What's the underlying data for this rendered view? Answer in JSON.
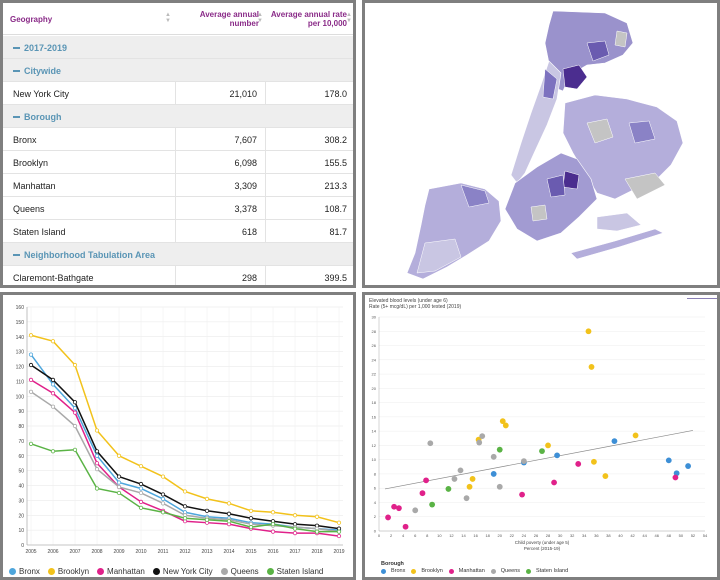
{
  "table": {
    "headers": {
      "geography": "Geography",
      "number": "Average annual number",
      "rate": "Average annual rate per 10,000"
    },
    "rows": [
      {
        "type": "group",
        "label": "2017-2019"
      },
      {
        "type": "group",
        "label": "Citywide"
      },
      {
        "type": "data",
        "label": "New York City",
        "number": "21,010",
        "rate": "178.0"
      },
      {
        "type": "group",
        "label": "Borough"
      },
      {
        "type": "data",
        "label": "Bronx",
        "number": "7,607",
        "rate": "308.2"
      },
      {
        "type": "data",
        "label": "Brooklyn",
        "number": "6,098",
        "rate": "155.5"
      },
      {
        "type": "data",
        "label": "Manhattan",
        "number": "3,309",
        "rate": "213.3"
      },
      {
        "type": "data",
        "label": "Queens",
        "number": "3,378",
        "rate": "108.7"
      },
      {
        "type": "data",
        "label": "Staten Island",
        "number": "618",
        "rate": "81.7"
      },
      {
        "type": "group",
        "label": "Neighborhood Tabulation Area"
      },
      {
        "type": "data",
        "label": "Claremont-Bathgate",
        "number": "298",
        "rate": "399.5"
      }
    ]
  },
  "map": {
    "colors": {
      "light": "#c9c6e3",
      "mid": "#9a92cc",
      "dark": "#6a5bb0",
      "darkest": "#4b2d8f",
      "nodata": "#c4c4c4"
    }
  },
  "chart_data": [
    {
      "type": "line",
      "x": [
        2005,
        2006,
        2007,
        2008,
        2009,
        2010,
        2011,
        2012,
        2013,
        2014,
        2015,
        2016,
        2017,
        2018,
        2019
      ],
      "ylim": [
        0,
        160
      ],
      "yticks": [
        0,
        10,
        20,
        30,
        40,
        50,
        60,
        70,
        80,
        90,
        100,
        110,
        120,
        130,
        140,
        150,
        160
      ],
      "series": [
        {
          "name": "Bronx",
          "color": "#4ea6dc",
          "values": [
            128,
            108,
            92,
            60,
            42,
            38,
            31,
            22,
            19,
            18,
            15,
            14,
            12,
            11,
            10
          ]
        },
        {
          "name": "Brooklyn",
          "color": "#f2c21b",
          "values": [
            141,
            137,
            121,
            77,
            60,
            53,
            46,
            36,
            31,
            28,
            23,
            22,
            20,
            19,
            15
          ]
        },
        {
          "name": "Manhattan",
          "color": "#e0218a",
          "values": [
            111,
            102,
            89,
            55,
            39,
            29,
            23,
            16,
            15,
            14,
            11,
            9,
            8,
            8,
            6
          ]
        },
        {
          "name": "New York City",
          "color": "#111111",
          "values": [
            121,
            111,
            96,
            63,
            46,
            41,
            34,
            26,
            23,
            21,
            18,
            16,
            14,
            13,
            11
          ]
        },
        {
          "name": "Queens",
          "color": "#a9a9a9",
          "values": [
            103,
            93,
            80,
            51,
            39,
            35,
            28,
            20,
            18,
            17,
            14,
            13,
            12,
            11,
            9
          ]
        },
        {
          "name": "Staten Island",
          "color": "#5ab345",
          "values": [
            68,
            63,
            64,
            38,
            35,
            25,
            22,
            18,
            17,
            16,
            12,
            14,
            11,
            9,
            9
          ]
        }
      ]
    },
    {
      "type": "scatter",
      "title": "Elevated blood levels (under age 6)",
      "subtitle": "Rate (5+ mcg/dL) per 1,000 tested (2019)",
      "xlabel": "Child poverty (under age 5)",
      "xlabel2": "Percent (2015-19)",
      "xlim": [
        0,
        54
      ],
      "ylim": [
        0,
        30
      ],
      "xticks": [
        0,
        2,
        4,
        6,
        8,
        10,
        12,
        14,
        16,
        18,
        20,
        22,
        24,
        26,
        28,
        30,
        32,
        34,
        36,
        38,
        40,
        42,
        44,
        46,
        48,
        50,
        52,
        54
      ],
      "yticks": [
        0,
        2,
        4,
        6,
        8,
        10,
        12,
        14,
        16,
        18,
        20,
        22,
        24,
        26,
        28,
        30
      ],
      "trend": [
        [
          1,
          5.9
        ],
        [
          52,
          14.1
        ]
      ],
      "legend_title": "Borough",
      "series": [
        {
          "name": "Bronx",
          "color": "#3d8fd6",
          "points": [
            [
              19,
              8
            ],
            [
              24,
              9.6
            ],
            [
              29.5,
              10.6
            ],
            [
              39,
              12.6
            ],
            [
              48,
              9.9
            ],
            [
              49.3,
              8.1
            ],
            [
              51.2,
              9.1
            ]
          ]
        },
        {
          "name": "Brooklyn",
          "color": "#f2c21b",
          "points": [
            [
              15,
              6.2
            ],
            [
              15.5,
              7.3
            ],
            [
              16.5,
              12.8
            ],
            [
              20.5,
              15.4
            ],
            [
              21,
              14.8
            ],
            [
              28,
              12
            ],
            [
              34.7,
              28
            ],
            [
              35.2,
              23
            ],
            [
              35.6,
              9.7
            ],
            [
              37.5,
              7.7
            ],
            [
              42.5,
              13.4
            ]
          ]
        },
        {
          "name": "Manhattan",
          "color": "#e0218a",
          "points": [
            [
              1.5,
              1.9
            ],
            [
              2.5,
              3.4
            ],
            [
              3.3,
              3.2
            ],
            [
              4.4,
              0.6
            ],
            [
              7.2,
              5.3
            ],
            [
              7.8,
              7.1
            ],
            [
              23.7,
              5.1
            ],
            [
              29,
              6.8
            ],
            [
              33,
              9.4
            ],
            [
              49.1,
              7.5
            ]
          ]
        },
        {
          "name": "Queens",
          "color": "#a9a9a9",
          "points": [
            [
              6,
              2.9
            ],
            [
              8.5,
              12.3
            ],
            [
              12.5,
              7.3
            ],
            [
              13.5,
              8.5
            ],
            [
              14.5,
              4.6
            ],
            [
              16.6,
              12.4
            ],
            [
              17.1,
              13.3
            ],
            [
              19,
              10.4
            ],
            [
              20,
              6.2
            ],
            [
              24,
              9.8
            ]
          ]
        },
        {
          "name": "Staten Island",
          "color": "#5ab345",
          "points": [
            [
              8.8,
              3.7
            ],
            [
              11.5,
              5.9
            ],
            [
              20,
              11.4
            ],
            [
              27,
              11.2
            ]
          ]
        }
      ]
    }
  ]
}
